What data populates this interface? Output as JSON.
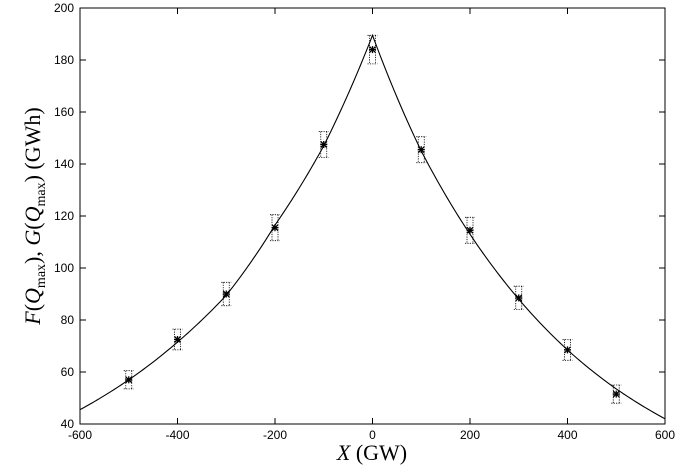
{
  "chart_data": {
    "type": "scatter",
    "title": "",
    "xlabel": {
      "symbol": "X",
      "unit": "(GW)"
    },
    "ylabel": {
      "f_name": "F",
      "q_symbol": "Q",
      "subscript": "max",
      "separator": ",",
      "g_name": "G",
      "unit": "(GWh)"
    },
    "xlim": [
      -600,
      600
    ],
    "ylim": [
      40,
      200
    ],
    "xticks": [
      -600,
      -400,
      -200,
      0,
      200,
      400,
      600
    ],
    "yticks": [
      40,
      60,
      80,
      100,
      120,
      140,
      160,
      180,
      200
    ],
    "grid": false,
    "legend": "none",
    "series": [
      {
        "kind": "points-with-error-bars",
        "x": [
          -500,
          -400,
          -300,
          -200,
          -100,
          0,
          100,
          200,
          300,
          400,
          500
        ],
        "y": [
          57,
          72.5,
          90,
          115.5,
          147.5,
          184,
          145.5,
          114.5,
          88.5,
          68.5,
          51.5
        ],
        "err": [
          3.5,
          4,
          4.5,
          5,
          5,
          5.5,
          5,
          5,
          4.5,
          4,
          3.5
        ]
      },
      {
        "kind": "fit-curve",
        "x": [
          -600,
          -500,
          -400,
          -300,
          -200,
          -100,
          0,
          100,
          200,
          300,
          400,
          500,
          600
        ],
        "y": [
          45.5,
          57,
          71.5,
          89.5,
          116.5,
          147,
          189.5,
          145,
          113,
          88,
          68.5,
          53.5,
          42
        ]
      }
    ]
  }
}
